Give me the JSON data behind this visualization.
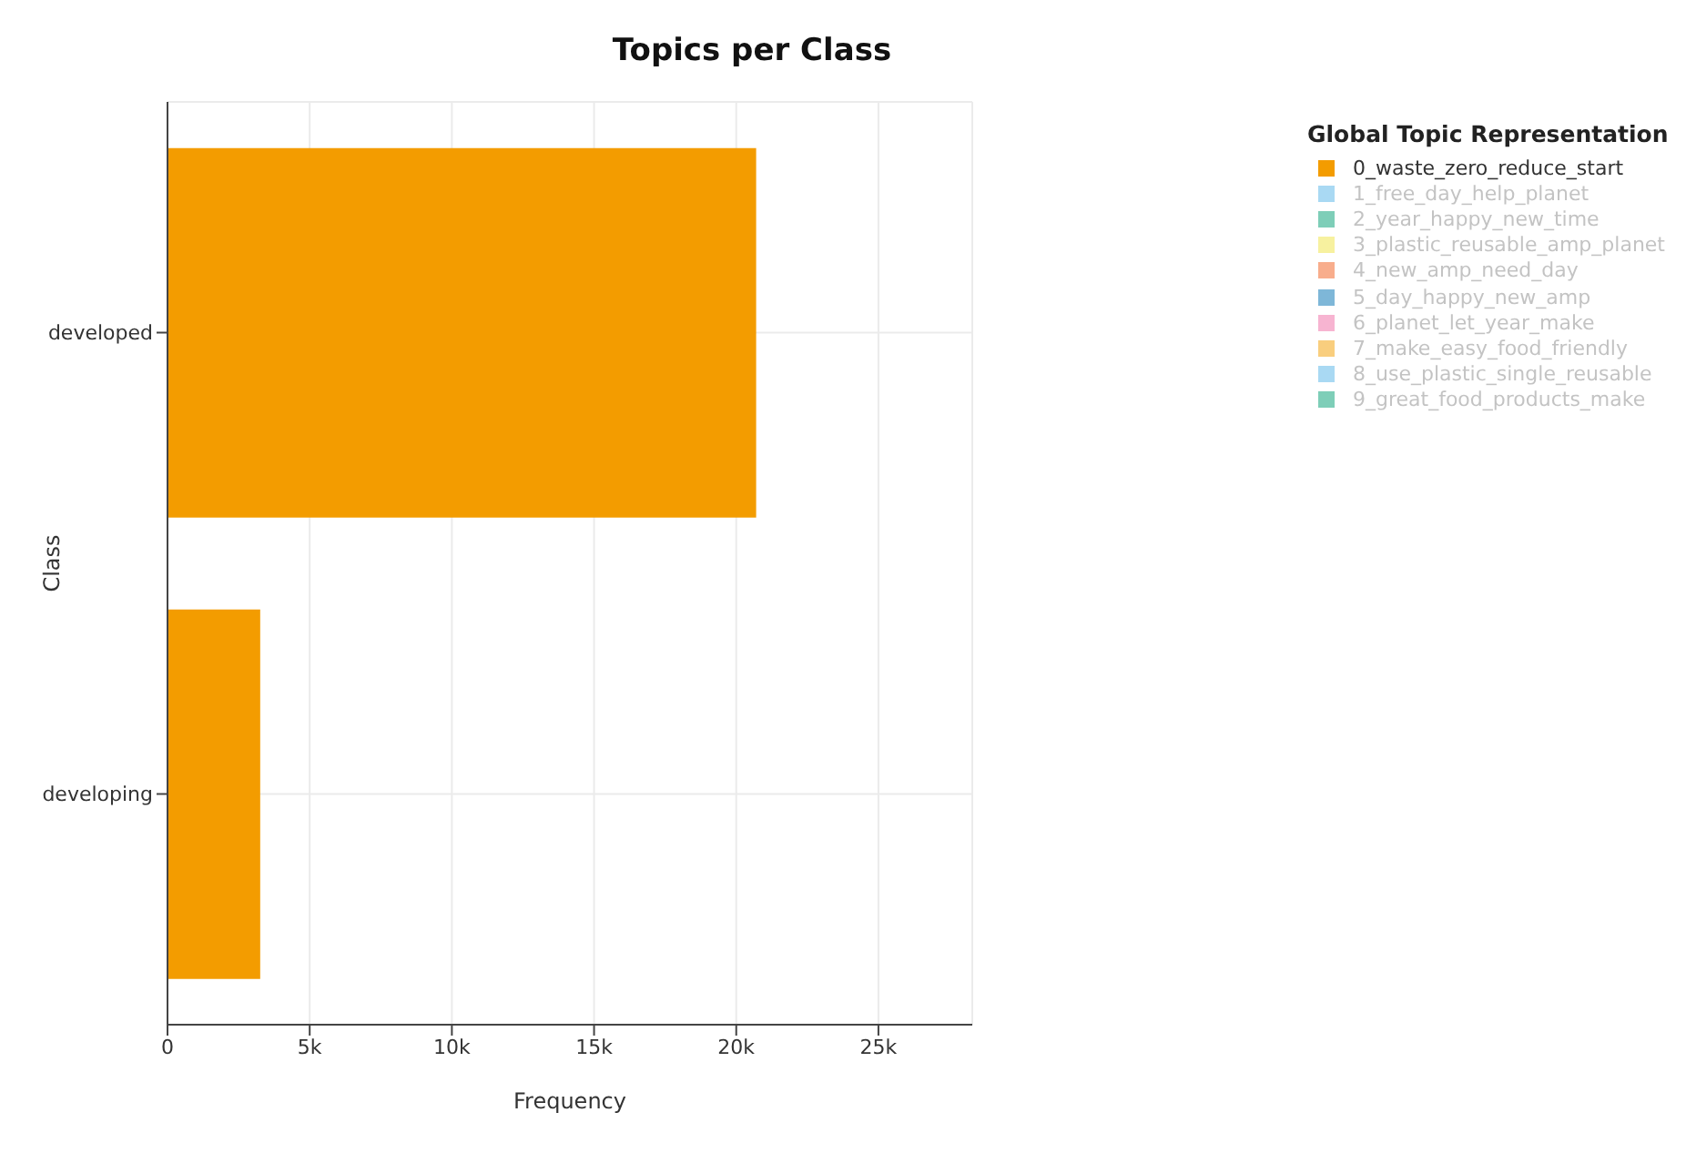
{
  "chart_data": {
    "type": "bar",
    "orientation": "horizontal",
    "title": "Topics per Class",
    "xlabel": "Frequency",
    "ylabel": "Class",
    "legend_title": "Global Topic Representation",
    "categories": [
      "developed",
      "developing"
    ],
    "series": [
      {
        "name": "0_waste_zero_reduce_start",
        "color": "#f39c00",
        "values": [
          20700,
          3260
        ]
      },
      {
        "name": "1_free_day_help_planet",
        "color": "#56b4e9",
        "values": [
          null,
          null
        ]
      },
      {
        "name": "2_year_happy_new_time",
        "color": "#009e73",
        "values": [
          null,
          null
        ]
      },
      {
        "name": "3_plastic_reusable_amp_planet",
        "color": "#f0e442",
        "values": [
          null,
          null
        ]
      },
      {
        "name": "4_new_amp_need_day",
        "color": "#f35e1b",
        "values": [
          null,
          null
        ]
      },
      {
        "name": "5_day_happy_new_amp",
        "color": "#0072b2",
        "values": [
          null,
          null
        ]
      },
      {
        "name": "6_planet_let_year_make",
        "color": "#f06ca4",
        "values": [
          null,
          null
        ]
      },
      {
        "name": "7_make_easy_food_friendly",
        "color": "#f59f00",
        "values": [
          null,
          null
        ]
      },
      {
        "name": "8_use_plastic_single_reusable",
        "color": "#56b4e9",
        "values": [
          null,
          null
        ]
      },
      {
        "name": "9_great_food_products_make",
        "color": "#009e73",
        "values": [
          null,
          null
        ]
      }
    ],
    "xlim": [
      0,
      28300
    ],
    "xticks": [
      0,
      {
        "value": 5000,
        "label": "5k"
      },
      {
        "value": 10000,
        "label": "10k"
      },
      {
        "value": 15000,
        "label": "15k"
      },
      {
        "value": 20000,
        "label": "20k"
      },
      {
        "value": 25000,
        "label": "25k"
      }
    ],
    "grid": true,
    "legend": "top right",
    "stacked": true
  }
}
